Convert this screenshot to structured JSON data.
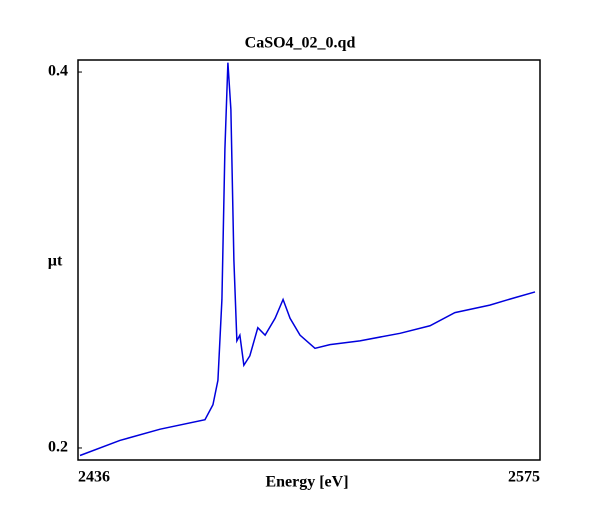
{
  "chart_data": {
    "type": "line",
    "title": "CaSO4_02_0.qd",
    "x_label": "Energy [eV]",
    "y_label": "µt",
    "x": [
      2436.6,
      2448.6,
      2460.7,
      2474.2,
      2476.6,
      2478.1,
      2479.3,
      2480.2,
      2481.1,
      2482.0,
      2482.9,
      2483.8,
      2484.7,
      2485.9,
      2487.7,
      2490.1,
      2492.3,
      2495.3,
      2497.7,
      2499.8,
      2502.8,
      2507.3,
      2511.8,
      2520.8,
      2532.9,
      2541.9,
      2549.4,
      2559.9,
      2567.5,
      2573.5
    ],
    "series": [
      {
        "name": "CaSO4_02_0.qd",
        "color": "#0000dd",
        "values": [
          0.196,
          0.204,
          0.21,
          0.215,
          0.223,
          0.236,
          0.279,
          0.359,
          0.405,
          0.38,
          0.3,
          0.257,
          0.26,
          0.244,
          0.249,
          0.264,
          0.26,
          0.269,
          0.279,
          0.269,
          0.26,
          0.253,
          0.255,
          0.257,
          0.261,
          0.265,
          0.272,
          0.276,
          0.28,
          0.283
        ]
      }
    ],
    "xlim": [
      2436,
      2575
    ],
    "xticks": [
      2436,
      2575
    ],
    "ylim": [
      0.1936,
      0.4064
    ],
    "yticks": [
      0.2,
      0.4
    ]
  }
}
